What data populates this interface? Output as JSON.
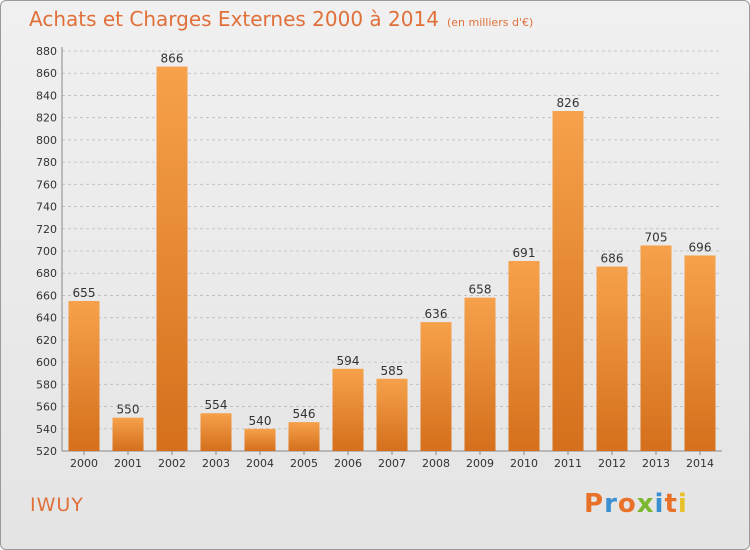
{
  "header": {
    "title": "Achats et Charges Externes 2000 à 2014",
    "unit": "(en milliers d'€)"
  },
  "footer": {
    "commune": "IWUY",
    "logo_letters": [
      {
        "char": "P",
        "color": "#e8712a"
      },
      {
        "char": "r",
        "color": "#3a8fd0"
      },
      {
        "char": "o",
        "color": "#e8712a"
      },
      {
        "char": "x",
        "color": "#7cb82f"
      },
      {
        "char": "i",
        "color": "#3a8fd0"
      },
      {
        "char": "t",
        "color": "#e8712a"
      },
      {
        "char": "i",
        "color": "#e8c02a"
      }
    ]
  },
  "colors": {
    "bar_light": "#f6a14b",
    "bar_dark": "#d56f1c",
    "title": "#e0703a",
    "grid": "#bbbbbb",
    "axis_text": "#333333"
  },
  "chart_data": {
    "type": "bar",
    "title": "Achats et Charges Externes 2000 à 2014",
    "subtitle": "(en milliers d'€)",
    "categories": [
      "2000",
      "2001",
      "2002",
      "2003",
      "2004",
      "2005",
      "2006",
      "2007",
      "2008",
      "2009",
      "2010",
      "2011",
      "2012",
      "2013",
      "2014"
    ],
    "values": [
      655,
      550,
      866,
      554,
      540,
      546,
      594,
      585,
      636,
      658,
      691,
      826,
      686,
      705,
      696
    ],
    "ylim": [
      520,
      880
    ],
    "ytick_step": 20,
    "grid": true,
    "xlabel": "",
    "ylabel": ""
  }
}
